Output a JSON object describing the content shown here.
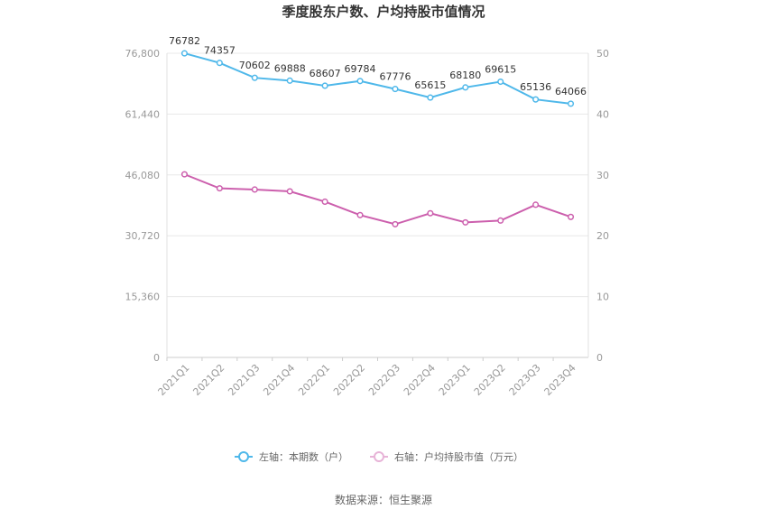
{
  "chart_data": {
    "type": "line",
    "title": "季度股东户数、户均持股市值情况",
    "categories": [
      "2021Q1",
      "2021Q2",
      "2021Q3",
      "2021Q4",
      "2022Q1",
      "2022Q2",
      "2022Q3",
      "2022Q4",
      "2023Q1",
      "2023Q2",
      "2023Q3",
      "2023Q4"
    ],
    "left_axis": {
      "ylim": [
        0,
        76800
      ],
      "ticks": [
        "0",
        "15,360",
        "30,720",
        "46,080",
        "61,440",
        "76,800"
      ],
      "tick_values": [
        0,
        15360,
        30720,
        46080,
        61440,
        76800
      ]
    },
    "right_axis": {
      "ylim": [
        0,
        50
      ],
      "ticks": [
        "0",
        "10",
        "20",
        "30",
        "40",
        "50"
      ],
      "tick_values": [
        0,
        10,
        20,
        30,
        40,
        50
      ]
    },
    "series": [
      {
        "name": "左轴：本期数（户）",
        "axis": "left",
        "color": "#4fb8ea",
        "values": [
          76782,
          74357,
          70602,
          69888,
          68607,
          69784,
          67776,
          65615,
          68180,
          69615,
          65136,
          64066
        ],
        "labels": [
          "76782",
          "74357",
          "70602",
          "69888",
          "68607",
          "69784",
          "67776",
          "65615",
          "68180",
          "69615",
          "65136",
          "64066"
        ]
      },
      {
        "name": "右轴：户均持股市值（万元）",
        "axis": "right",
        "color": "#cc5fad",
        "values": [
          30.1,
          27.8,
          27.6,
          27.3,
          25.6,
          23.4,
          21.9,
          23.7,
          22.2,
          22.5,
          25.1,
          23.1
        ]
      }
    ],
    "grid": true,
    "legend": "bottom"
  },
  "source": "数据来源：恒生聚源"
}
